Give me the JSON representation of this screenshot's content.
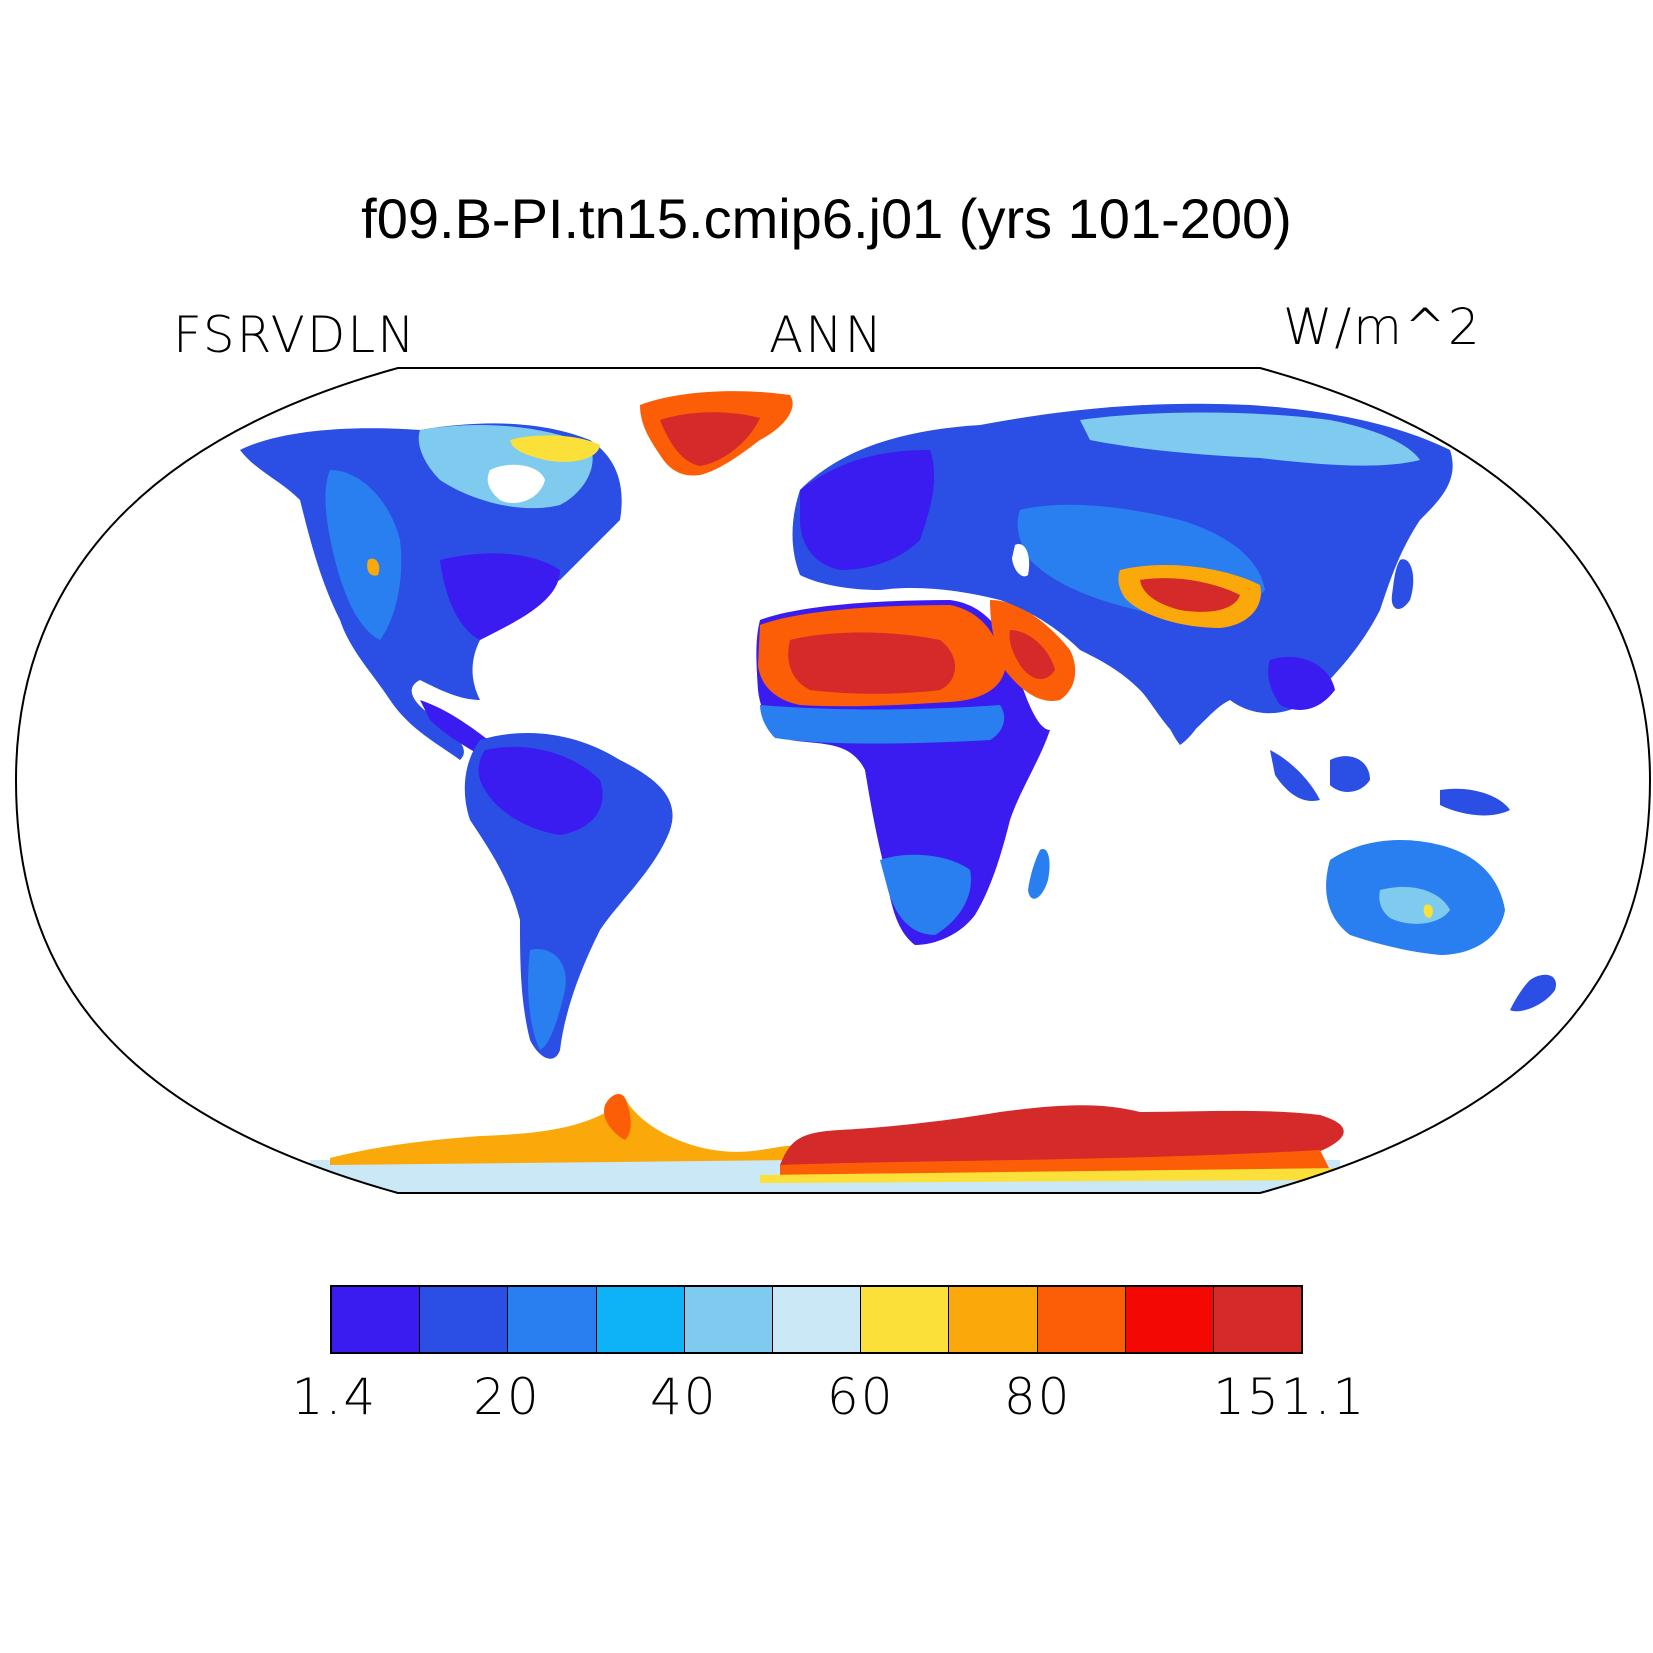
{
  "title": "f09.B-PI.tn15.cmip6.j01 (yrs 101-200)",
  "left_label": "FSRVDLN",
  "center_label": "ANN",
  "right_label": "W/m^2",
  "colorbar": {
    "colors": [
      "#3a1cf0",
      "#2b4ee4",
      "#2a7ff0",
      "#0eb2f6",
      "#7fcbef",
      "#cbe8f6",
      "#fbe03a",
      "#fba90a",
      "#fb5e07",
      "#f30803",
      "#d42a2a"
    ],
    "labels": [
      "1.4",
      "20",
      "40",
      "60",
      "80",
      "151.1"
    ]
  }
}
